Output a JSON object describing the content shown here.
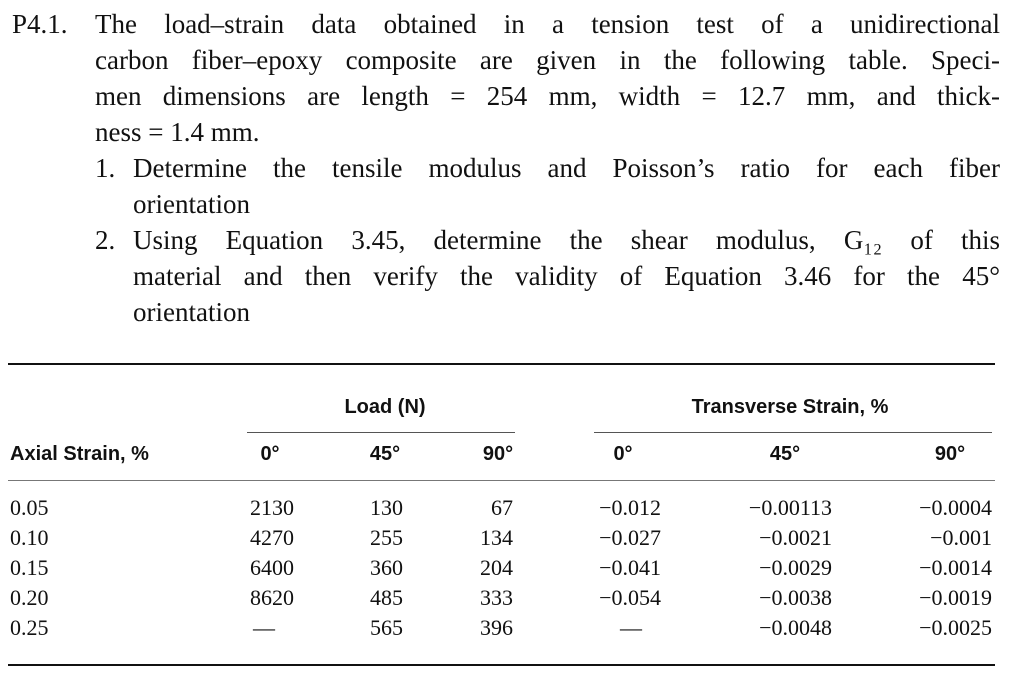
{
  "problem": {
    "number": "P4.1.",
    "lines": [
      "The load–strain data obtained in a tension test of a unidirectional",
      "carbon fiber–epoxy composite are given in the following table. Speci-",
      "men dimensions are length = 254 mm, width = 12.7 mm, and thick-",
      "ness = 1.4 mm."
    ],
    "tasks": [
      {
        "num": "1.",
        "lines": [
          "Determine the tensile modulus and Poisson’s ratio for each fiber",
          "orientation"
        ]
      },
      {
        "num": "2.",
        "lines": [
          "Using Equation 3.45, determine the shear modulus, G₁₂ of this",
          "material and then verify the validity of Equation 3.46 for the 45°",
          "orientation"
        ]
      }
    ]
  },
  "table": {
    "group_load": "Load (N)",
    "group_transverse": "Transverse Strain, %",
    "axial_header": "Axial Strain, %",
    "load_cols": [
      "0°",
      "45°",
      "90°"
    ],
    "trans_cols": [
      "0°",
      "45°",
      "90°"
    ],
    "rows": [
      {
        "axial": "0.05",
        "load": [
          "2130",
          "130",
          "67"
        ],
        "trans": [
          "−0.012",
          "−0.00113",
          "−0.0004"
        ]
      },
      {
        "axial": "0.10",
        "load": [
          "4270",
          "255",
          "134"
        ],
        "trans": [
          "−0.027",
          "−0.0021",
          "−0.001"
        ]
      },
      {
        "axial": "0.15",
        "load": [
          "6400",
          "360",
          "204"
        ],
        "trans": [
          "−0.041",
          "−0.0029",
          "−0.0014"
        ]
      },
      {
        "axial": "0.20",
        "load": [
          "8620",
          "485",
          "333"
        ],
        "trans": [
          "−0.054",
          "−0.0038",
          "−0.0019"
        ]
      },
      {
        "axial": "0.25",
        "load": [
          "—",
          "565",
          "396"
        ],
        "trans": [
          "—",
          "−0.0048",
          "−0.0025"
        ]
      }
    ]
  }
}
